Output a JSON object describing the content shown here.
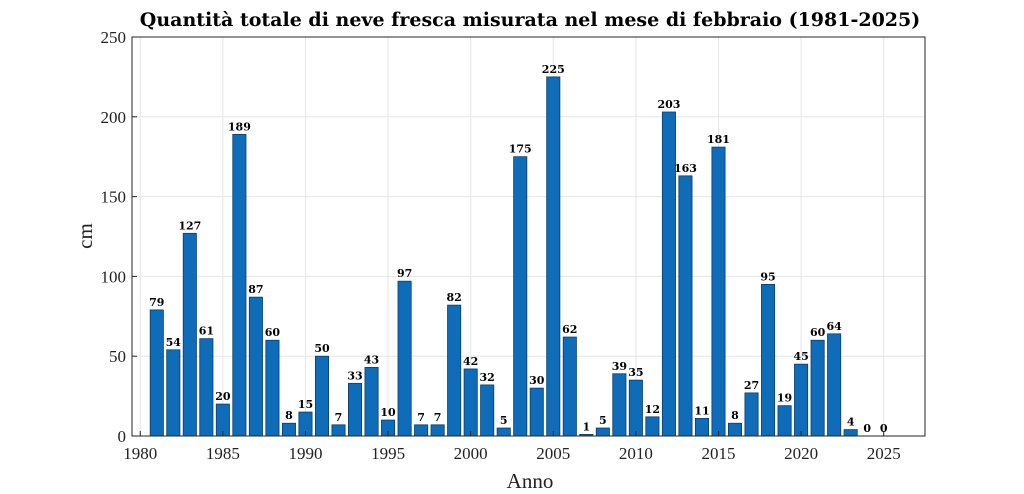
{
  "chart_data": {
    "type": "bar",
    "title": "Quantità totale di neve fresca misurata nel mese di febbraio (1981-2025)",
    "xlabel": "Anno",
    "ylabel": "cm",
    "x": [
      1981,
      1982,
      1983,
      1984,
      1985,
      1986,
      1987,
      1988,
      1989,
      1990,
      1991,
      1992,
      1993,
      1994,
      1995,
      1996,
      1997,
      1998,
      1999,
      2000,
      2001,
      2002,
      2003,
      2004,
      2005,
      2006,
      2007,
      2008,
      2009,
      2010,
      2011,
      2012,
      2013,
      2014,
      2015,
      2016,
      2017,
      2018,
      2019,
      2020,
      2021,
      2022,
      2023,
      2024,
      2025
    ],
    "values": [
      79,
      54,
      127,
      61,
      20,
      189,
      87,
      60,
      8,
      15,
      50,
      7,
      33,
      43,
      10,
      97,
      7,
      7,
      82,
      42,
      32,
      5,
      175,
      30,
      225,
      62,
      1,
      5,
      39,
      35,
      12,
      203,
      163,
      11,
      181,
      8,
      27,
      95,
      19,
      45,
      60,
      64,
      4,
      0,
      0
    ],
    "labels": [
      "79",
      "54",
      "127",
      "61",
      "20",
      "189",
      "87",
      "60",
      "8",
      "15",
      "50",
      "7",
      "33",
      "43",
      "10",
      "97",
      "7",
      "7",
      "82",
      "42",
      "32",
      "5",
      "175",
      "30",
      "225",
      "62",
      "1",
      "5",
      "39",
      "35",
      "12",
      "203",
      "163",
      "11",
      "181",
      "8",
      "27",
      "95",
      "19",
      "45",
      "60",
      "64",
      "4",
      "0",
      "0"
    ],
    "xlim": [
      1979.5,
      2027.5
    ],
    "ylim": [
      0,
      250
    ],
    "xticks": [
      "1980",
      "1985",
      "1990",
      "1995",
      "2000",
      "2005",
      "2010",
      "2015",
      "2020",
      "2025"
    ],
    "yticks": [
      "0",
      "50",
      "100",
      "150",
      "200",
      "250"
    ],
    "grid": true,
    "bar_color": "#0e6cb9"
  }
}
